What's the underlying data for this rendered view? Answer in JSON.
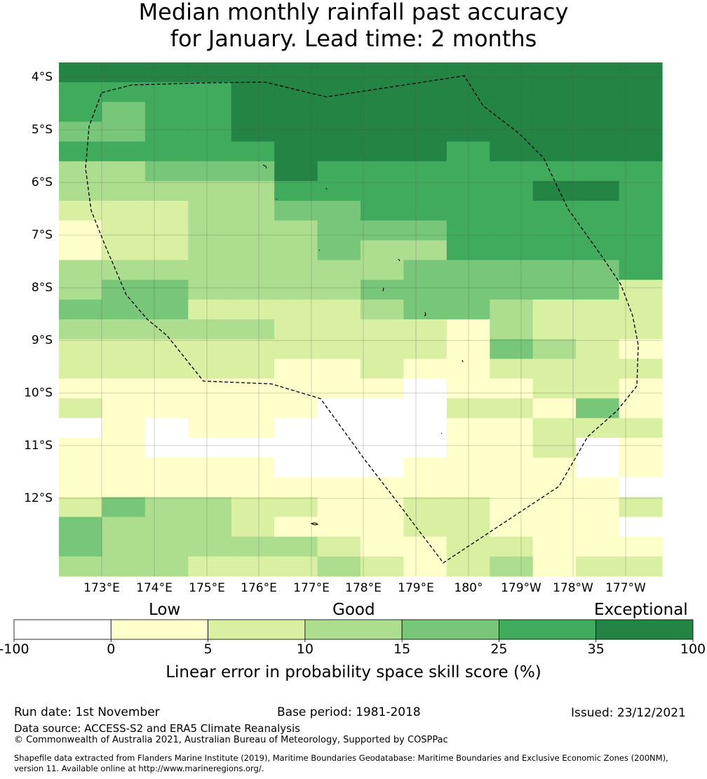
{
  "title": {
    "line1": "Median monthly rainfall past accuracy",
    "line2": "for January. Lead time: 2 months"
  },
  "map": {
    "lat_labels": [
      "4°S",
      "5°S",
      "6°S",
      "7°S",
      "8°S",
      "9°S",
      "10°S",
      "11°S",
      "12°S"
    ],
    "lon_labels": [
      "173°E",
      "174°E",
      "175°E",
      "176°E",
      "177°E",
      "178°E",
      "179°E",
      "180°",
      "179°W",
      "178°W",
      "177°W"
    ],
    "region_outline": "dashed maritime boundary (EEZ)",
    "colors": [
      "#ffffff",
      "#ffffcc",
      "#d9f0a3",
      "#addd8e",
      "#78c679",
      "#41ab5d",
      "#238443"
    ],
    "grid": [
      "66666666666666",
      "55556666666666",
      "54556666666666",
      "44556666666666",
      "55555666656666",
      "33444655555555",
      "33333555555665",
      "22233445555555",
      "12233344455555",
      "12233343355555",
      "33333333444445",
      "34433334444442",
      "44422223443222",
      "33333222213222",
      "22222222214321",
      "22222112112222",
      "11111111011221",
      "21111100022141",
      "01011000011222",
      "11000000011201",
      "11111000111101",
      "11111111111110",
      "24332211221112",
      "43332111221110",
      "43333321122111",
      "33322232123122"
    ]
  },
  "colorbar": {
    "categories": [
      "Low",
      "Good",
      "Exceptional"
    ],
    "ticks": [
      "-100",
      "0",
      "5",
      "10",
      "15",
      "25",
      "35",
      "100"
    ],
    "title": "Linear error in probability space skill score (%)"
  },
  "footer": {
    "run_date": "Run date: 1st November",
    "base_period": "Base period: 1981-2018",
    "issued": "Issued: 23/12/2021",
    "data_source": "Data source: ACCESS-S2 and ERA5 Climate Reanalysis",
    "copyright": "© Commonwealth of Australia 2021, Australian Bureau of Meteorology, Supported by COSPPac",
    "shapefile_line1": "Shapefile data extracted from Flanders Marine Institute (2019), Maritime Boundaries Geodatabase: Maritime Boundaries and Exclusive Economic Zones (200NM),",
    "shapefile_line2": "version 11. Available online at http://www.marineregions.org/."
  }
}
